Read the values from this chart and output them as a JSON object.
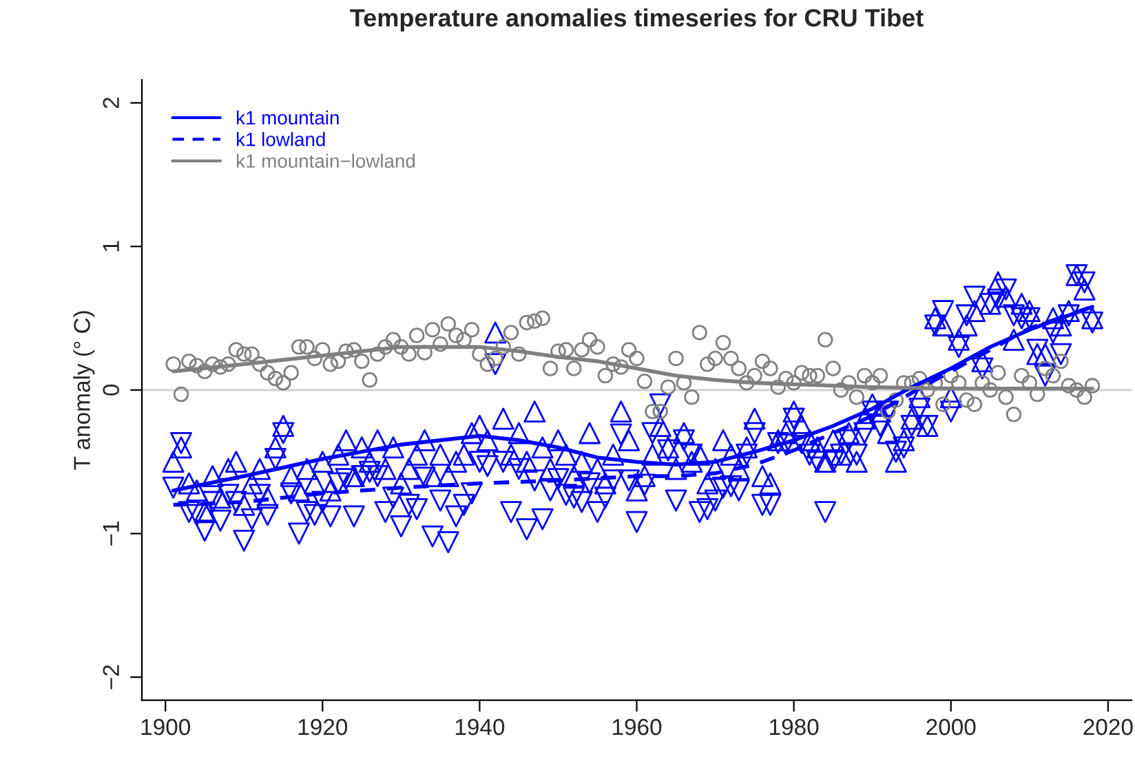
{
  "chart_data": {
    "type": "scatter",
    "title": "Temperature anomalies timeseries for CRU Tibet",
    "ylabel": "T anomaly (° C)",
    "xlim": [
      1897,
      2023
    ],
    "ylim": [
      -2.16,
      2.16
    ],
    "xticks": [
      1900,
      1920,
      1940,
      1960,
      1980,
      2000,
      2020
    ],
    "yticks": [
      {
        "value": -2,
        "label": "−2"
      },
      {
        "value": -1,
        "label": "−1"
      },
      0,
      1,
      2
    ],
    "grid": false,
    "legend": "top left",
    "ref_lines": [
      {
        "axis": "y",
        "value": 0,
        "label": null,
        "color": "#d3d3d3"
      }
    ],
    "x": [
      1901,
      1902,
      1903,
      1904,
      1905,
      1906,
      1907,
      1908,
      1909,
      1910,
      1911,
      1912,
      1913,
      1914,
      1915,
      1916,
      1917,
      1918,
      1919,
      1920,
      1921,
      1922,
      1923,
      1924,
      1925,
      1926,
      1927,
      1928,
      1929,
      1930,
      1931,
      1932,
      1933,
      1934,
      1935,
      1936,
      1937,
      1938,
      1939,
      1940,
      1941,
      1942,
      1943,
      1944,
      1945,
      1946,
      1947,
      1948,
      1949,
      1950,
      1951,
      1952,
      1953,
      1954,
      1955,
      1956,
      1957,
      1958,
      1959,
      1960,
      1961,
      1962,
      1963,
      1964,
      1965,
      1966,
      1967,
      1968,
      1969,
      1970,
      1971,
      1972,
      1973,
      1974,
      1975,
      1976,
      1977,
      1978,
      1979,
      1980,
      1981,
      1982,
      1983,
      1984,
      1985,
      1986,
      1987,
      1988,
      1989,
      1990,
      1991,
      1992,
      1993,
      1994,
      1995,
      1996,
      1997,
      1998,
      1999,
      2000,
      2001,
      2002,
      2003,
      2004,
      2005,
      2006,
      2007,
      2008,
      2009,
      2010,
      2011,
      2012,
      2013,
      2014,
      2015,
      2016,
      2017,
      2018
    ],
    "series": [
      {
        "marker": "triangle",
        "color": "#0000ff",
        "values": [
          -0.5,
          -0.4,
          -0.65,
          -0.7,
          -0.85,
          -0.6,
          -0.75,
          -0.55,
          -0.5,
          -0.8,
          -0.65,
          -0.55,
          -0.75,
          -0.4,
          -0.25,
          -0.6,
          -0.7,
          -0.55,
          -0.65,
          -0.5,
          -0.7,
          -0.45,
          -0.35,
          -0.6,
          -0.4,
          -0.5,
          -0.35,
          -0.55,
          -0.4,
          -0.65,
          -0.55,
          -0.45,
          -0.35,
          -0.6,
          -0.45,
          -0.6,
          -0.5,
          -0.45,
          -0.3,
          -0.25,
          -0.35,
          0.4,
          -0.2,
          -0.45,
          -0.3,
          -0.5,
          -0.15,
          -0.4,
          -0.55,
          -0.35,
          -0.45,
          -0.6,
          -0.5,
          -0.3,
          -0.55,
          -0.65,
          -0.45,
          -0.15,
          -0.35,
          -0.7,
          -0.6,
          -0.45,
          -0.25,
          -0.4,
          -0.55,
          -0.3,
          -0.5,
          -0.45,
          -0.65,
          -0.55,
          -0.35,
          -0.45,
          -0.55,
          -0.4,
          -0.2,
          -0.6,
          -0.65,
          -0.35,
          -0.3,
          -0.15,
          -0.25,
          -0.35,
          -0.4,
          -0.5,
          -0.35,
          -0.45,
          -0.3,
          -0.5,
          -0.2,
          -0.1,
          -0.15,
          -0.3,
          -0.5,
          -0.35,
          -0.2,
          -0.05,
          -0.25,
          0.5,
          0.45,
          -0.05,
          0.35,
          0.45,
          0.55,
          0.2,
          0.6,
          0.75,
          0.65,
          0.35,
          0.6,
          0.55,
          0.25,
          0.25,
          0.5,
          0.45,
          0.55,
          0.8,
          0.7,
          0.5
        ]
      },
      {
        "marker": "triangle_down",
        "color": "#0000ff",
        "values": [
          -0.68,
          -0.37,
          -0.85,
          -0.87,
          -0.98,
          -0.78,
          -0.91,
          -0.73,
          -0.78,
          -1.05,
          -0.9,
          -0.73,
          -0.87,
          -0.48,
          -0.3,
          -0.72,
          -1.0,
          -0.85,
          -0.87,
          -0.78,
          -0.88,
          -0.65,
          -0.62,
          -0.88,
          -0.6,
          -0.57,
          -0.6,
          -0.85,
          -0.75,
          -0.95,
          -0.8,
          -0.83,
          -0.61,
          -1.02,
          -0.77,
          -1.06,
          -0.88,
          -0.8,
          -0.72,
          -0.5,
          -0.53,
          0.18,
          -0.5,
          -0.85,
          -0.55,
          -0.97,
          -0.63,
          -0.9,
          -0.7,
          -0.62,
          -0.73,
          -0.75,
          -0.78,
          -0.65,
          -0.85,
          -0.75,
          -0.63,
          -0.31,
          -0.63,
          -0.92,
          -0.66,
          -0.3,
          -0.1,
          -0.42,
          -0.77,
          -0.35,
          -0.45,
          -0.85,
          -0.83,
          -0.77,
          -0.68,
          -0.67,
          -0.7,
          -0.45,
          -0.3,
          -0.8,
          -0.8,
          -0.37,
          -0.38,
          -0.2,
          -0.37,
          -0.45,
          -0.5,
          -0.85,
          -0.5,
          -0.45,
          -0.35,
          -0.45,
          -0.3,
          -0.15,
          -0.25,
          -0.15,
          -0.43,
          -0.4,
          -0.25,
          -0.13,
          -0.25,
          0.45,
          0.55,
          -0.15,
          0.3,
          0.52,
          0.65,
          0.15,
          0.6,
          0.63,
          0.7,
          0.52,
          0.5,
          0.5,
          0.28,
          0.1,
          0.4,
          0.25,
          0.52,
          0.8,
          0.75,
          0.47
        ]
      },
      {
        "marker": "circle",
        "color": "#808080",
        "values": [
          0.18,
          -0.03,
          0.2,
          0.17,
          0.13,
          0.18,
          0.16,
          0.18,
          0.28,
          0.25,
          0.25,
          0.18,
          0.12,
          0.08,
          0.05,
          0.12,
          0.3,
          0.3,
          0.22,
          0.28,
          0.18,
          0.2,
          0.27,
          0.28,
          0.2,
          0.07,
          0.25,
          0.3,
          0.35,
          0.3,
          0.25,
          0.38,
          0.26,
          0.42,
          0.32,
          0.46,
          0.38,
          0.35,
          0.42,
          0.25,
          0.18,
          0.22,
          0.3,
          0.4,
          0.25,
          0.47,
          0.48,
          0.5,
          0.15,
          0.27,
          0.28,
          0.15,
          0.28,
          0.35,
          0.3,
          0.1,
          0.18,
          0.16,
          0.28,
          0.22,
          0.06,
          -0.15,
          -0.15,
          0.02,
          0.22,
          0.05,
          -0.05,
          0.4,
          0.18,
          0.22,
          0.33,
          0.22,
          0.15,
          0.05,
          0.1,
          0.2,
          0.15,
          0.02,
          0.08,
          0.05,
          0.12,
          0.1,
          0.1,
          0.35,
          0.15,
          0.0,
          0.05,
          -0.05,
          0.1,
          0.05,
          0.1,
          -0.15,
          -0.07,
          0.05,
          0.05,
          0.08,
          0.0,
          0.05,
          -0.1,
          0.1,
          0.05,
          -0.07,
          -0.1,
          0.05,
          0.0,
          0.12,
          -0.05,
          -0.17,
          0.1,
          0.05,
          -0.03,
          0.15,
          0.1,
          0.2,
          0.03,
          0.0,
          -0.05,
          0.03
        ]
      },
      {
        "type": "line",
        "name": "k1 mountain",
        "line_style": "solid",
        "color": "#0000ff",
        "x": [
          1901,
          1910,
          1920,
          1930,
          1940,
          1945,
          1950,
          1955,
          1960,
          1965,
          1970,
          1975,
          1980,
          1985,
          1990,
          1995,
          2000,
          2005,
          2010,
          2018
        ],
        "values": [
          -0.7,
          -0.6,
          -0.48,
          -0.38,
          -0.32,
          -0.35,
          -0.4,
          -0.47,
          -0.5,
          -0.52,
          -0.5,
          -0.43,
          -0.35,
          -0.25,
          -0.13,
          0.02,
          0.15,
          0.3,
          0.42,
          0.58
        ]
      },
      {
        "type": "line",
        "name": "k1 lowland",
        "line_style": "dashed",
        "color": "#0000ff",
        "x": [
          1901,
          1910,
          1920,
          1930,
          1940,
          1950,
          1960,
          1965,
          1970,
          1975,
          1980,
          1985,
          1990,
          1995,
          2000,
          2005,
          2010,
          2018
        ],
        "values": [
          -0.8,
          -0.78,
          -0.72,
          -0.68,
          -0.65,
          -0.63,
          -0.6,
          -0.6,
          -0.58,
          -0.52,
          -0.42,
          -0.3,
          -0.18,
          -0.02,
          0.13,
          0.28,
          0.43,
          0.58
        ]
      },
      {
        "type": "line",
        "name": "k1 mountain−lowland",
        "line_style": "solid",
        "color": "#808080",
        "x": [
          1901,
          1910,
          1920,
          1930,
          1940,
          1945,
          1950,
          1955,
          1960,
          1965,
          1970,
          1975,
          1980,
          1985,
          1990,
          2000,
          2010,
          2018
        ],
        "values": [
          0.13,
          0.18,
          0.24,
          0.3,
          0.3,
          0.27,
          0.23,
          0.2,
          0.15,
          0.1,
          0.07,
          0.05,
          0.04,
          0.03,
          0.02,
          0.01,
          0.01,
          0.01
        ]
      }
    ]
  }
}
